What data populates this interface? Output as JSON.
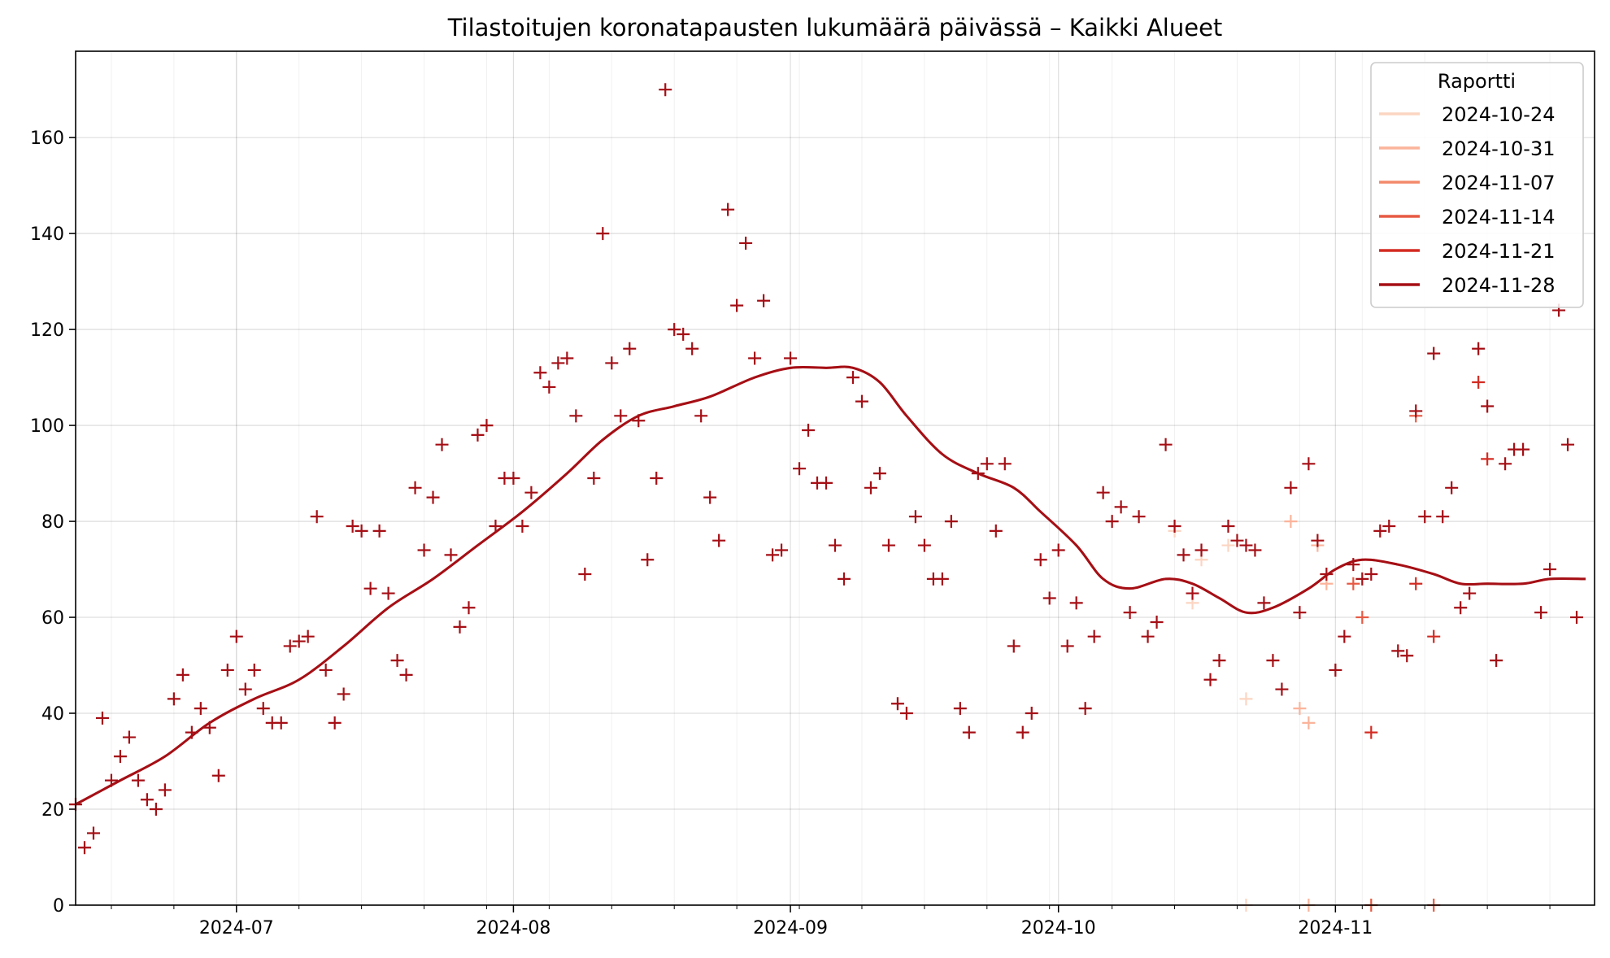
{
  "chart_data": {
    "type": "line",
    "title": "Tilastoitujen koronatapausten lukumäärä päivässä – Kaikki Alueet",
    "xlabel": "",
    "ylabel": "",
    "xlim": [
      "2024-06-13",
      "2024-11-30"
    ],
    "ylim": [
      0,
      178
    ],
    "x_ticks": [
      {
        "date": "2024-07-01",
        "label": "2024-07"
      },
      {
        "date": "2024-08-01",
        "label": "2024-08"
      },
      {
        "date": "2024-09-01",
        "label": "2024-09"
      },
      {
        "date": "2024-10-01",
        "label": "2024-10"
      },
      {
        "date": "2024-11-01",
        "label": "2024-11"
      }
    ],
    "y_ticks": [
      0,
      20,
      40,
      60,
      80,
      100,
      120,
      140,
      160
    ],
    "grid": true,
    "legend": {
      "title": "Raportti",
      "position": "top-right",
      "entries": [
        {
          "label": "2024-10-24",
          "color": "#fcd5c2"
        },
        {
          "label": "2024-10-31",
          "color": "#fbb49b"
        },
        {
          "label": "2024-11-07",
          "color": "#f38a6c"
        },
        {
          "label": "2024-11-14",
          "color": "#e75a43"
        },
        {
          "label": "2024-11-21",
          "color": "#d32b22"
        },
        {
          "label": "2024-11-28",
          "color": "#a50f15"
        }
      ]
    },
    "trend": [
      [
        "2024-06-13",
        21
      ],
      [
        "2024-06-18",
        26
      ],
      [
        "2024-06-23",
        31
      ],
      [
        "2024-06-28",
        38
      ],
      [
        "2024-07-03",
        43
      ],
      [
        "2024-07-08",
        47
      ],
      [
        "2024-07-13",
        54
      ],
      [
        "2024-07-18",
        62
      ],
      [
        "2024-07-23",
        68
      ],
      [
        "2024-07-28",
        75
      ],
      [
        "2024-08-02",
        82
      ],
      [
        "2024-08-07",
        90
      ],
      [
        "2024-08-11",
        97
      ],
      [
        "2024-08-15",
        102
      ],
      [
        "2024-08-19",
        104
      ],
      [
        "2024-08-23",
        106
      ],
      [
        "2024-08-28",
        110
      ],
      [
        "2024-09-01",
        112
      ],
      [
        "2024-09-05",
        112
      ],
      [
        "2024-09-08",
        112
      ],
      [
        "2024-09-11",
        109
      ],
      [
        "2024-09-14",
        102
      ],
      [
        "2024-09-18",
        94
      ],
      [
        "2024-09-22",
        90
      ],
      [
        "2024-09-26",
        87
      ],
      [
        "2024-09-29",
        82
      ],
      [
        "2024-10-03",
        75
      ],
      [
        "2024-10-06",
        68
      ],
      [
        "2024-10-09",
        66
      ],
      [
        "2024-10-13",
        68
      ],
      [
        "2024-10-16",
        67
      ],
      [
        "2024-10-19",
        64
      ],
      [
        "2024-10-22",
        61
      ],
      [
        "2024-10-25",
        62
      ],
      [
        "2024-10-29",
        66
      ],
      [
        "2024-11-01",
        70
      ],
      [
        "2024-11-04",
        72
      ],
      [
        "2024-11-08",
        71
      ],
      [
        "2024-11-12",
        69
      ],
      [
        "2024-11-15",
        67
      ],
      [
        "2024-11-18",
        67
      ],
      [
        "2024-11-22",
        67
      ],
      [
        "2024-11-25",
        68
      ],
      [
        "2024-11-29",
        68
      ],
      [
        "2024-11-01",
        68
      ]
    ],
    "series": [
      {
        "name": "2024-11-28",
        "points": [
          [
            "2024-06-13",
            21
          ],
          [
            "2024-06-14",
            12
          ],
          [
            "2024-06-15",
            15
          ],
          [
            "2024-06-16",
            39
          ],
          [
            "2024-06-17",
            26
          ],
          [
            "2024-06-18",
            31
          ],
          [
            "2024-06-19",
            35
          ],
          [
            "2024-06-20",
            26
          ],
          [
            "2024-06-21",
            22
          ],
          [
            "2024-06-22",
            20
          ],
          [
            "2024-06-23",
            24
          ],
          [
            "2024-06-24",
            43
          ],
          [
            "2024-06-25",
            48
          ],
          [
            "2024-06-26",
            36
          ],
          [
            "2024-06-27",
            41
          ],
          [
            "2024-06-28",
            37
          ],
          [
            "2024-06-29",
            27
          ],
          [
            "2024-06-30",
            49
          ],
          [
            "2024-07-01",
            56
          ],
          [
            "2024-07-02",
            45
          ],
          [
            "2024-07-03",
            49
          ],
          [
            "2024-07-04",
            41
          ],
          [
            "2024-07-05",
            38
          ],
          [
            "2024-07-06",
            38
          ],
          [
            "2024-07-07",
            54
          ],
          [
            "2024-07-08",
            55
          ],
          [
            "2024-07-09",
            56
          ],
          [
            "2024-07-10",
            81
          ],
          [
            "2024-07-11",
            49
          ],
          [
            "2024-07-12",
            38
          ],
          [
            "2024-07-13",
            44
          ],
          [
            "2024-07-14",
            79
          ],
          [
            "2024-07-15",
            78
          ],
          [
            "2024-07-16",
            66
          ],
          [
            "2024-07-17",
            78
          ],
          [
            "2024-07-18",
            65
          ],
          [
            "2024-07-19",
            51
          ],
          [
            "2024-07-20",
            48
          ],
          [
            "2024-07-21",
            87
          ],
          [
            "2024-07-22",
            74
          ],
          [
            "2024-07-23",
            85
          ],
          [
            "2024-07-24",
            96
          ],
          [
            "2024-07-25",
            73
          ],
          [
            "2024-07-26",
            58
          ],
          [
            "2024-07-27",
            62
          ],
          [
            "2024-07-28",
            98
          ],
          [
            "2024-07-29",
            100
          ],
          [
            "2024-07-30",
            79
          ],
          [
            "2024-07-31",
            89
          ],
          [
            "2024-08-01",
            89
          ],
          [
            "2024-08-02",
            79
          ],
          [
            "2024-08-03",
            86
          ],
          [
            "2024-08-04",
            111
          ],
          [
            "2024-08-05",
            108
          ],
          [
            "2024-08-06",
            113
          ],
          [
            "2024-08-07",
            114
          ],
          [
            "2024-08-08",
            102
          ],
          [
            "2024-08-09",
            69
          ],
          [
            "2024-08-10",
            89
          ],
          [
            "2024-08-11",
            140
          ],
          [
            "2024-08-12",
            113
          ],
          [
            "2024-08-13",
            102
          ],
          [
            "2024-08-14",
            116
          ],
          [
            "2024-08-15",
            101
          ],
          [
            "2024-08-16",
            72
          ],
          [
            "2024-08-17",
            89
          ],
          [
            "2024-08-18",
            170
          ],
          [
            "2024-08-19",
            120
          ],
          [
            "2024-08-20",
            119
          ],
          [
            "2024-08-21",
            116
          ],
          [
            "2024-08-22",
            102
          ],
          [
            "2024-08-23",
            85
          ],
          [
            "2024-08-24",
            76
          ],
          [
            "2024-08-25",
            145
          ],
          [
            "2024-08-26",
            125
          ],
          [
            "2024-08-27",
            138
          ],
          [
            "2024-08-28",
            114
          ],
          [
            "2024-08-29",
            126
          ],
          [
            "2024-08-30",
            73
          ],
          [
            "2024-08-31",
            74
          ],
          [
            "2024-09-01",
            114
          ],
          [
            "2024-09-02",
            91
          ],
          [
            "2024-09-03",
            99
          ],
          [
            "2024-09-04",
            88
          ],
          [
            "2024-09-05",
            88
          ],
          [
            "2024-09-06",
            75
          ],
          [
            "2024-09-07",
            68
          ],
          [
            "2024-09-08",
            110
          ],
          [
            "2024-09-09",
            105
          ],
          [
            "2024-09-10",
            87
          ],
          [
            "2024-09-11",
            90
          ],
          [
            "2024-09-12",
            75
          ],
          [
            "2024-09-13",
            42
          ],
          [
            "2024-09-14",
            40
          ],
          [
            "2024-09-15",
            81
          ],
          [
            "2024-09-16",
            75
          ],
          [
            "2024-09-17",
            68
          ],
          [
            "2024-09-18",
            68
          ],
          [
            "2024-09-19",
            80
          ],
          [
            "2024-09-20",
            41
          ],
          [
            "2024-09-21",
            36
          ],
          [
            "2024-09-22",
            90
          ],
          [
            "2024-09-23",
            92
          ],
          [
            "2024-09-24",
            78
          ],
          [
            "2024-09-25",
            92
          ],
          [
            "2024-09-26",
            54
          ],
          [
            "2024-09-27",
            36
          ],
          [
            "2024-09-28",
            40
          ],
          [
            "2024-09-29",
            72
          ],
          [
            "2024-09-30",
            64
          ],
          [
            "2024-10-01",
            74
          ],
          [
            "2024-10-02",
            54
          ],
          [
            "2024-10-03",
            63
          ],
          [
            "2024-10-04",
            41
          ],
          [
            "2024-10-05",
            56
          ],
          [
            "2024-10-06",
            86
          ],
          [
            "2024-10-07",
            80
          ],
          [
            "2024-10-08",
            83
          ],
          [
            "2024-10-09",
            61
          ],
          [
            "2024-10-10",
            81
          ],
          [
            "2024-10-11",
            56
          ],
          [
            "2024-10-12",
            59
          ],
          [
            "2024-10-13",
            96
          ],
          [
            "2024-10-14",
            79
          ],
          [
            "2024-10-15",
            73
          ],
          [
            "2024-10-16",
            65
          ],
          [
            "2024-10-17",
            74
          ],
          [
            "2024-10-18",
            47
          ],
          [
            "2024-10-19",
            51
          ],
          [
            "2024-10-20",
            79
          ],
          [
            "2024-10-21",
            76
          ],
          [
            "2024-10-22",
            75
          ],
          [
            "2024-10-23",
            74
          ],
          [
            "2024-10-24",
            63
          ],
          [
            "2024-10-25",
            51
          ],
          [
            "2024-10-26",
            45
          ],
          [
            "2024-10-27",
            87
          ],
          [
            "2024-10-28",
            61
          ],
          [
            "2024-10-29",
            92
          ],
          [
            "2024-10-30",
            76
          ],
          [
            "2024-10-31",
            69
          ],
          [
            "2024-11-01",
            49
          ],
          [
            "2024-11-02",
            56
          ],
          [
            "2024-11-03",
            71
          ],
          [
            "2024-11-04",
            68
          ],
          [
            "2024-11-05",
            69
          ],
          [
            "2024-11-06",
            78
          ],
          [
            "2024-11-07",
            79
          ],
          [
            "2024-11-08",
            53
          ],
          [
            "2024-11-09",
            52
          ],
          [
            "2024-11-10",
            103
          ],
          [
            "2024-11-11",
            81
          ],
          [
            "2024-11-12",
            115
          ],
          [
            "2024-11-13",
            81
          ],
          [
            "2024-11-14",
            87
          ],
          [
            "2024-11-15",
            62
          ],
          [
            "2024-11-16",
            65
          ],
          [
            "2024-11-17",
            116
          ],
          [
            "2024-11-18",
            104
          ],
          [
            "2024-11-19",
            51
          ],
          [
            "2024-11-20",
            92
          ],
          [
            "2024-11-21",
            95
          ],
          [
            "2024-11-22",
            95
          ],
          [
            "2024-11-24",
            61
          ],
          [
            "2024-11-25",
            70
          ],
          [
            "2024-11-26",
            124
          ],
          [
            "2024-11-27",
            96
          ],
          [
            "2024-11-28",
            60
          ]
        ]
      },
      {
        "name": "2024-11-21",
        "points": [
          [
            "2024-11-05",
            36
          ],
          [
            "2024-11-10",
            67
          ],
          [
            "2024-11-12",
            56
          ],
          [
            "2024-11-17",
            109
          ],
          [
            "2024-11-18",
            93
          ]
        ]
      },
      {
        "name": "2024-11-14",
        "points": [
          [
            "2024-11-03",
            67
          ],
          [
            "2024-11-04",
            60
          ],
          [
            "2024-11-10",
            102
          ],
          [
            "2024-11-05",
            0
          ],
          [
            "2024-11-12",
            0
          ]
        ]
      },
      {
        "name": "2024-10-31",
        "points": [
          [
            "2024-10-27",
            80
          ],
          [
            "2024-10-28",
            41
          ],
          [
            "2024-10-29",
            38
          ],
          [
            "2024-10-30",
            75
          ],
          [
            "2024-10-31",
            67
          ],
          [
            "2024-10-29",
            0
          ]
        ]
      },
      {
        "name": "2024-10-24",
        "points": [
          [
            "2024-10-14",
            78
          ],
          [
            "2024-10-16",
            63
          ],
          [
            "2024-10-17",
            72
          ],
          [
            "2024-10-20",
            75
          ],
          [
            "2024-10-22",
            43
          ],
          [
            "2024-10-22",
            0
          ]
        ]
      }
    ]
  }
}
